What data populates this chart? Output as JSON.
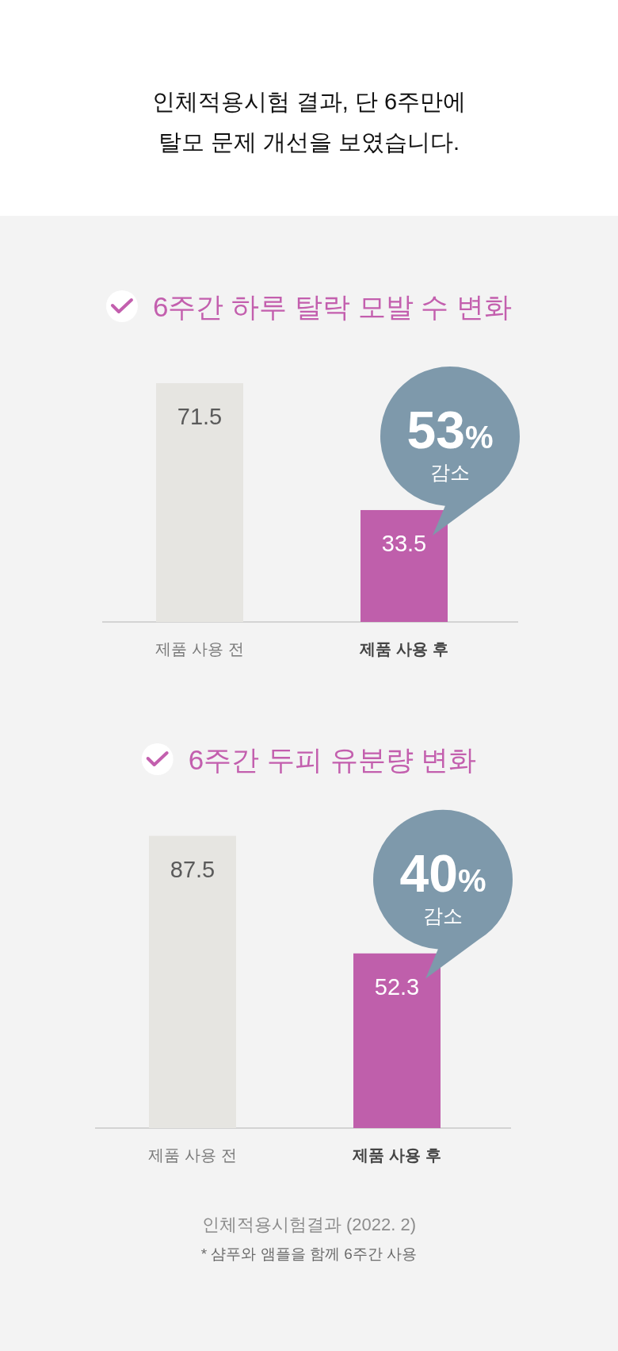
{
  "chart_data": [
    {
      "type": "other",
      "title": "인체적용시험 결과, 단 6주만에\n탈모 문제 개선을 보였습니다."
    },
    {
      "type": "bar",
      "title": "6주간 하루 탈락 모발 수 변화",
      "categories": [
        "제품 사용 전",
        "제품 사용 후"
      ],
      "values": [
        71.5,
        33.5
      ],
      "colors": [
        "#e6e5e1",
        "#bf5fab"
      ],
      "data_labels": true,
      "annotations": [
        {
          "text": "53%\n감소",
          "x": "제품 사용 후",
          "y": 33.5
        }
      ]
    },
    {
      "type": "bar",
      "title": "6주간 두피 유분량 변화",
      "categories": [
        "제품 사용 전",
        "제품 사용 후"
      ],
      "values": [
        87.5,
        52.3
      ],
      "colors": [
        "#e6e5e1",
        "#bf5fab"
      ],
      "data_labels": true,
      "annotations": [
        {
          "text": "40%\n감소",
          "x": "제품 사용 후",
          "y": 52.3
        },
        "인체적용시험결과 (2022. 2)",
        "* 샴푸와 앰플을 함께 6주간 사용"
      ]
    }
  ]
}
